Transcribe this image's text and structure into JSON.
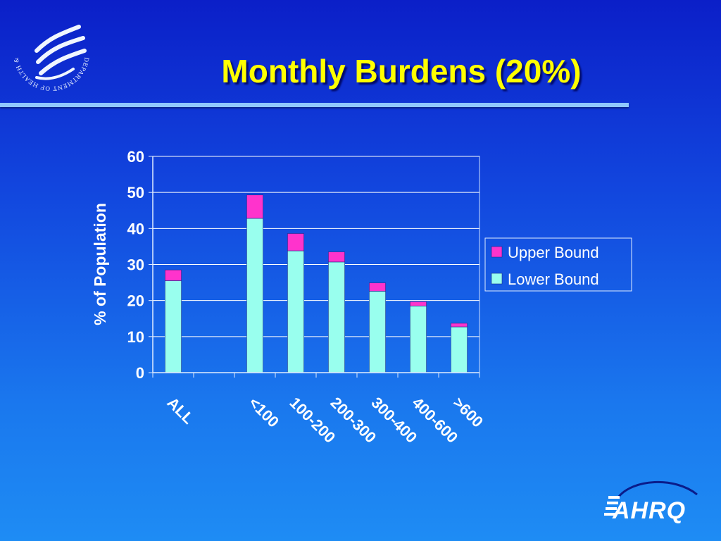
{
  "header": {
    "title": "Monthly Burdens (20%)"
  },
  "logos": {
    "hhs": {
      "icon": "hhs-eagle-seal-icon",
      "ring_text": "DEPARTMENT OF HEALTH & HUMAN SERVICES · USA"
    },
    "ahrq": {
      "icon": "ahrq-logo-icon",
      "text": "AHRQ"
    }
  },
  "colors": {
    "background_top": "#0b1fc8",
    "background_bottom": "#1e8cf4",
    "title": "#ffff00",
    "upper_bound": "#ff33cc",
    "lower_bound": "#99ffee",
    "grid": "#ffffff"
  },
  "chart_data": {
    "type": "bar",
    "stacked": true,
    "title": "",
    "xlabel": "",
    "ylabel": "% of Population",
    "ylim": [
      0,
      60
    ],
    "yticks": [
      "0",
      "10",
      "20",
      "30",
      "40",
      "50",
      "60"
    ],
    "categories": [
      "ALL",
      "",
      "<100",
      "100-200",
      "200-300",
      "300-400",
      "400-600",
      ">600"
    ],
    "series": [
      {
        "name": "Lower Bound",
        "color": "#99ffee",
        "values": [
          25.5,
          null,
          42.8,
          33.8,
          30.7,
          22.6,
          18.5,
          12.7
        ]
      },
      {
        "name": "Upper Bound",
        "color": "#ff33cc",
        "values": [
          3.0,
          null,
          6.5,
          4.8,
          2.8,
          2.3,
          1.2,
          1.0
        ]
      }
    ],
    "legend": {
      "position": "right",
      "entries": [
        "Upper Bound",
        "Lower Bound"
      ]
    },
    "grid": true
  }
}
